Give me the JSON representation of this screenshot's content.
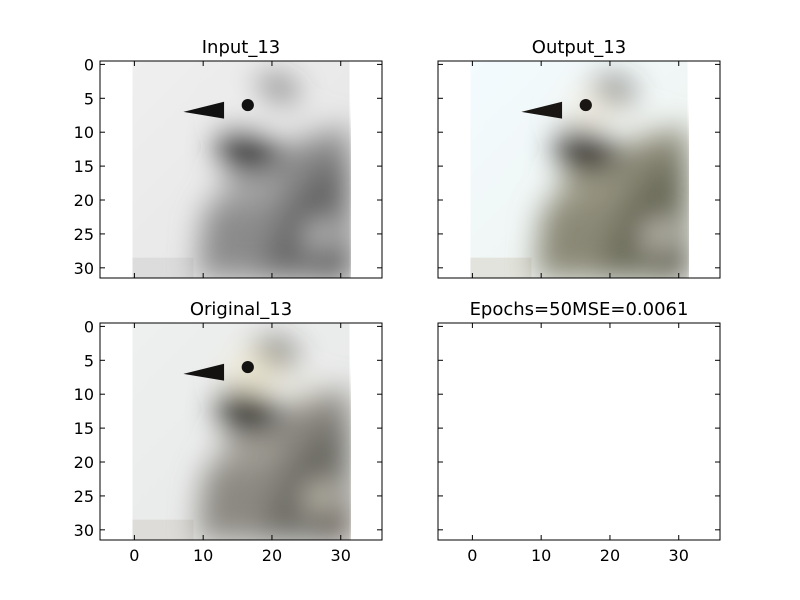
{
  "chart_data": [
    {
      "type": "image",
      "title": "Input_13",
      "variant": "grayscale",
      "xlim": [
        -5,
        36
      ],
      "ylim": [
        31.5,
        -0.5
      ],
      "image_extent": [
        -0.5,
        31.5
      ],
      "xticks": [],
      "yticks": [
        0,
        5,
        10,
        15,
        20,
        25,
        30
      ]
    },
    {
      "type": "image",
      "title": "Output_13",
      "variant": "color",
      "xlim": [
        -5,
        36
      ],
      "ylim": [
        31.5,
        -0.5
      ],
      "image_extent": [
        -0.5,
        31.5
      ],
      "xticks": [],
      "yticks": []
    },
    {
      "type": "image",
      "title": "Original_13",
      "variant": "color",
      "xlim": [
        -5,
        36
      ],
      "ylim": [
        31.5,
        -0.5
      ],
      "image_extent": [
        -0.5,
        31.5
      ],
      "xticks": [
        0,
        10,
        20,
        30
      ],
      "yticks": [
        0,
        5,
        10,
        15,
        20,
        25,
        30
      ]
    },
    {
      "type": "empty",
      "title": "Epochs=50MSE=0.0061",
      "variant": "none",
      "xlim": [
        -5,
        36
      ],
      "ylim": [
        31.5,
        -0.5
      ],
      "xticks": [
        0,
        10,
        20,
        30
      ],
      "yticks": []
    }
  ]
}
